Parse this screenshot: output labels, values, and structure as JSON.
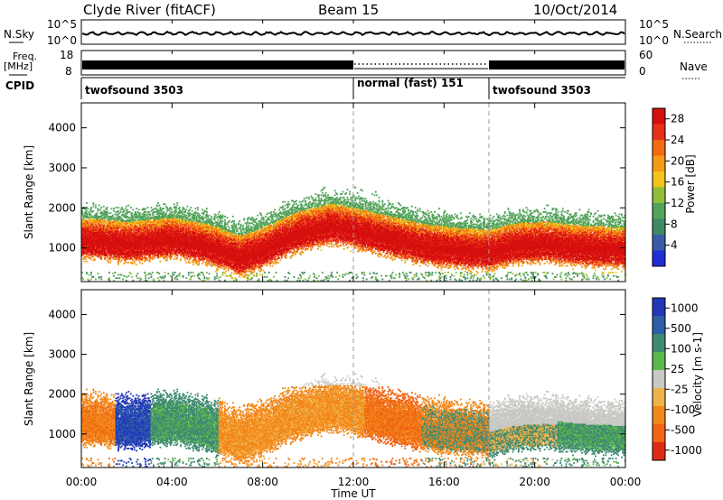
{
  "header": {
    "station": "Clyde River (fitACF)",
    "beam": "Beam 15",
    "date": "10/Oct/2014"
  },
  "nsky_panel": {
    "left_label": "N.Sky",
    "right_label": "N.Search",
    "left_ticks": [
      "10^5",
      "10^0"
    ],
    "right_ticks": [
      "10^5",
      "10^0"
    ]
  },
  "freq_panel": {
    "left_label_1": "Freq.",
    "left_label_2": "[MHz]",
    "right_label": "Nave",
    "left_ticks": [
      "18",
      "8"
    ],
    "right_ticks": [
      "60",
      "0"
    ]
  },
  "cpid_panel": {
    "label": "CPID",
    "segments": [
      {
        "name": "twofsound 3503",
        "start": "00:00",
        "end": "12:00"
      },
      {
        "name": "normal (fast) 151",
        "start": "12:00",
        "end": "18:00"
      },
      {
        "name": "twofsound 3503",
        "start": "18:00",
        "end": "24:00"
      }
    ]
  },
  "chart_data": [
    {
      "type": "heatmap",
      "title": "",
      "xlabel": "Time UT",
      "ylabel": "Slant Range [km]",
      "x_ticks": [
        "00:00",
        "04:00",
        "08:00",
        "12:00",
        "16:00",
        "20:00",
        "00:00"
      ],
      "y_ticks": [
        "1000",
        "2000",
        "3000",
        "4000"
      ],
      "xlim_hours": [
        0,
        24
      ],
      "ylim_km": [
        180,
        4600
      ],
      "colorbar": {
        "label": "Power [dB]",
        "ticks": [
          "4",
          "8",
          "12",
          "16",
          "20",
          "24",
          "28"
        ],
        "range": [
          0,
          30
        ],
        "colors": [
          "#1f2dd6",
          "#3a5ca8",
          "#3e8a64",
          "#53a35a",
          "#8fbf3a",
          "#f2c318",
          "#f39a17",
          "#f26a12",
          "#e8301a",
          "#d60f0f"
        ]
      },
      "ridge_km": [
        [
          0,
          1150
        ],
        [
          2,
          1050
        ],
        [
          4,
          1150
        ],
        [
          5.5,
          1000
        ],
        [
          7,
          700
        ],
        [
          8,
          900
        ],
        [
          9.5,
          1300
        ],
        [
          11,
          1500
        ],
        [
          12,
          1400
        ],
        [
          13.5,
          1200
        ],
        [
          15,
          1000
        ],
        [
          16.5,
          900
        ],
        [
          18,
          850
        ],
        [
          19,
          1000
        ],
        [
          20.5,
          1050
        ],
        [
          22,
          950
        ],
        [
          24,
          900
        ]
      ]
    },
    {
      "type": "heatmap",
      "title": "",
      "xlabel": "Time UT",
      "ylabel": "Slant Range [km]",
      "x_ticks": [
        "00:00",
        "04:00",
        "08:00",
        "12:00",
        "16:00",
        "20:00",
        "00:00"
      ],
      "y_ticks": [
        "1000",
        "2000",
        "3000",
        "4000"
      ],
      "xlim_hours": [
        0,
        24
      ],
      "ylim_km": [
        180,
        4600
      ],
      "colorbar": {
        "label": "Velocity [m s-1]",
        "ticks": [
          "1000",
          "500",
          "100",
          "25",
          "-25",
          "-100",
          "-500",
          "-1000"
        ],
        "colors": [
          "#2437b8",
          "#2e5ea8",
          "#3f8a72",
          "#5cb84a",
          "#c8c8c4",
          "#f0b24a",
          "#f2881a",
          "#f06414",
          "#e02a16"
        ]
      }
    }
  ]
}
